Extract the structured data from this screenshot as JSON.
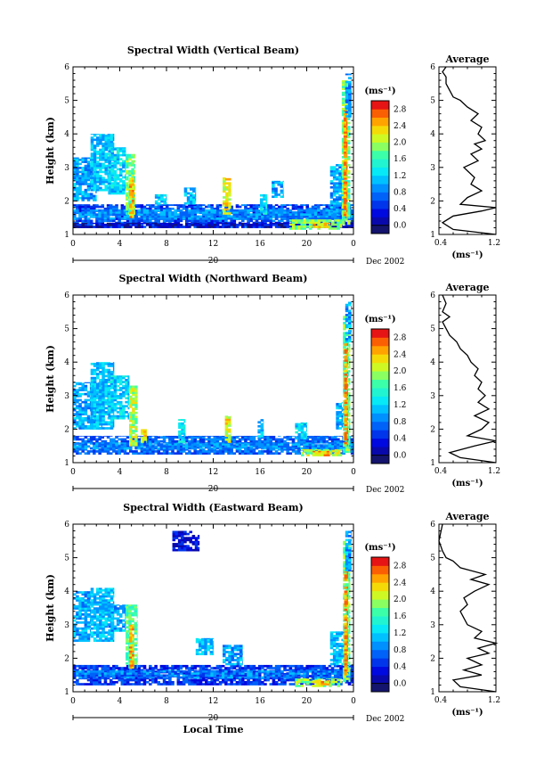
{
  "chart_data": [
    {
      "type": "heatmap",
      "title": "Spectral Width (Vertical Beam)",
      "xlabel": "",
      "ylabel": "Height (km)",
      "xlim": [
        0,
        24
      ],
      "ylim": [
        1,
        6
      ],
      "x_ticks": [
        "0",
        "4",
        "8",
        "12",
        "16",
        "20",
        "0"
      ],
      "y_ticks": [
        "1",
        "2",
        "3",
        "4",
        "5",
        "6"
      ],
      "date_label": "20",
      "date_suffix": "Dec 2002",
      "colorbar": {
        "unit": "(ms⁻¹)",
        "ticks": [
          "2.8",
          "2.4",
          "2.0",
          "1.6",
          "1.2",
          "0.8",
          "0.4",
          "0.0"
        ]
      },
      "features": [
        {
          "t0": 0.0,
          "t1": 24.0,
          "h0": 1.2,
          "h1": 1.9,
          "v": 0.8
        },
        {
          "t0": 0.0,
          "t1": 24.0,
          "h0": 1.45,
          "h1": 1.75,
          "v": 1.1
        },
        {
          "t0": 0.0,
          "t1": 24.0,
          "h0": 1.2,
          "h1": 1.35,
          "v": 0.4
        },
        {
          "t0": 0.0,
          "t1": 2.0,
          "h0": 2.0,
          "h1": 3.3,
          "v": 1.2
        },
        {
          "t0": 1.5,
          "t1": 3.5,
          "h0": 2.3,
          "h1": 4.0,
          "v": 1.3
        },
        {
          "t0": 3.0,
          "t1": 4.5,
          "h0": 2.2,
          "h1": 3.6,
          "v": 1.4
        },
        {
          "t0": 4.5,
          "t1": 5.3,
          "h0": 1.6,
          "h1": 3.4,
          "v": 2.0
        },
        {
          "t0": 4.8,
          "t1": 5.2,
          "h0": 1.5,
          "h1": 2.7,
          "v": 2.6
        },
        {
          "t0": 7.0,
          "t1": 8.0,
          "h0": 1.9,
          "h1": 2.2,
          "v": 1.4
        },
        {
          "t0": 9.5,
          "t1": 10.5,
          "h0": 1.9,
          "h1": 2.4,
          "v": 1.3
        },
        {
          "t0": 12.8,
          "t1": 13.5,
          "h0": 1.6,
          "h1": 2.7,
          "v": 2.4
        },
        {
          "t0": 16.0,
          "t1": 16.6,
          "h0": 1.6,
          "h1": 2.2,
          "v": 1.5
        },
        {
          "t0": 17.0,
          "t1": 18.0,
          "h0": 2.1,
          "h1": 2.6,
          "v": 1.2
        },
        {
          "t0": 18.5,
          "t1": 23.0,
          "h0": 1.15,
          "h1": 1.45,
          "v": 2.1
        },
        {
          "t0": 20.5,
          "t1": 22.0,
          "h0": 1.2,
          "h1": 1.35,
          "v": 2.6
        },
        {
          "t0": 22.0,
          "t1": 23.2,
          "h0": 1.6,
          "h1": 3.1,
          "v": 1.2
        },
        {
          "t0": 23.0,
          "t1": 23.7,
          "h0": 1.3,
          "h1": 5.6,
          "v": 2.0
        },
        {
          "t0": 23.15,
          "t1": 23.45,
          "h0": 1.5,
          "h1": 4.7,
          "v": 2.8
        },
        {
          "t0": 23.3,
          "t1": 23.8,
          "h0": 4.5,
          "h1": 5.8,
          "v": 1.1
        }
      ]
    },
    {
      "type": "line",
      "title": "Average",
      "xlabel": "(ms⁻¹)",
      "ylabel": "",
      "xlim": [
        0.4,
        1.2
      ],
      "ylim": [
        1,
        6
      ],
      "x_ticks": [
        "0.4",
        "1.2"
      ],
      "y_ticks": [
        "1",
        "2",
        "3",
        "4",
        "5",
        "6"
      ],
      "x": [
        1.2,
        0.6,
        0.45,
        0.6,
        1.0,
        1.2,
        0.7,
        0.8,
        1.0,
        0.85,
        0.9,
        0.8,
        0.75,
        0.95,
        0.85,
        1.0,
        0.9,
        1.05,
        0.95,
        1.0,
        0.85,
        0.95,
        0.8,
        0.7,
        0.6,
        0.55,
        0.5,
        0.5,
        0.45,
        0.5
      ],
      "y": [
        1.0,
        1.15,
        1.35,
        1.55,
        1.7,
        1.8,
        1.9,
        2.1,
        2.3,
        2.5,
        2.7,
        2.9,
        3.0,
        3.2,
        3.4,
        3.55,
        3.7,
        3.8,
        4.0,
        4.2,
        4.4,
        4.6,
        4.8,
        5.0,
        5.1,
        5.3,
        5.5,
        5.7,
        5.85,
        6.0
      ]
    },
    {
      "type": "heatmap",
      "title": "Spectral Width (Northward Beam)",
      "xlabel": "",
      "ylabel": "Height (km)",
      "xlim": [
        0,
        24
      ],
      "ylim": [
        1,
        6
      ],
      "x_ticks": [
        "0",
        "4",
        "8",
        "12",
        "16",
        "20",
        "0"
      ],
      "y_ticks": [
        "1",
        "2",
        "3",
        "4",
        "5",
        "6"
      ],
      "date_label": "20",
      "date_suffix": "Dec 2002",
      "colorbar": {
        "unit": "(ms⁻¹)",
        "ticks": [
          "2.8",
          "2.4",
          "2.0",
          "1.6",
          "1.2",
          "0.8",
          "0.4",
          "0.0"
        ]
      },
      "features": [
        {
          "t0": 0.0,
          "t1": 24.0,
          "h0": 1.25,
          "h1": 1.8,
          "v": 0.9
        },
        {
          "t0": 0.0,
          "t1": 24.0,
          "h0": 1.4,
          "h1": 1.6,
          "v": 1.1
        },
        {
          "t0": 0.0,
          "t1": 2.5,
          "h0": 2.0,
          "h1": 3.4,
          "v": 1.2
        },
        {
          "t0": 1.5,
          "t1": 3.5,
          "h0": 2.0,
          "h1": 4.0,
          "v": 1.3
        },
        {
          "t0": 3.0,
          "t1": 4.8,
          "h0": 2.3,
          "h1": 3.6,
          "v": 1.4
        },
        {
          "t0": 4.8,
          "t1": 5.5,
          "h0": 1.5,
          "h1": 3.3,
          "v": 2.2
        },
        {
          "t0": 5.8,
          "t1": 6.3,
          "h0": 1.6,
          "h1": 2.0,
          "v": 2.4
        },
        {
          "t0": 9.0,
          "t1": 9.6,
          "h0": 1.6,
          "h1": 2.3,
          "v": 1.5
        },
        {
          "t0": 13.0,
          "t1": 13.5,
          "h0": 1.6,
          "h1": 2.4,
          "v": 2.4
        },
        {
          "t0": 15.8,
          "t1": 16.3,
          "h0": 1.7,
          "h1": 2.3,
          "v": 1.3
        },
        {
          "t0": 19.0,
          "t1": 20.0,
          "h0": 1.7,
          "h1": 2.2,
          "v": 1.4
        },
        {
          "t0": 19.5,
          "t1": 23.0,
          "h0": 1.2,
          "h1": 1.4,
          "v": 2.2
        },
        {
          "t0": 20.5,
          "t1": 22.0,
          "h0": 1.2,
          "h1": 1.35,
          "v": 2.6
        },
        {
          "t0": 22.5,
          "t1": 23.2,
          "h0": 2.0,
          "h1": 2.8,
          "v": 1.2
        },
        {
          "t0": 23.1,
          "t1": 23.7,
          "h0": 1.3,
          "h1": 5.4,
          "v": 2.0
        },
        {
          "t0": 23.2,
          "t1": 23.5,
          "h0": 1.5,
          "h1": 4.6,
          "v": 2.8
        },
        {
          "t0": 23.3,
          "t1": 23.8,
          "h0": 4.6,
          "h1": 5.8,
          "v": 1.2
        }
      ]
    },
    {
      "type": "line",
      "title": "Average",
      "xlabel": "(ms⁻¹)",
      "ylabel": "",
      "xlim": [
        0.4,
        1.2
      ],
      "ylim": [
        1,
        6
      ],
      "x_ticks": [
        "0.4",
        "1.2"
      ],
      "y_ticks": [
        "1",
        "2",
        "3",
        "4",
        "5",
        "6"
      ],
      "x": [
        1.2,
        0.7,
        0.55,
        0.9,
        1.2,
        0.8,
        1.0,
        1.1,
        0.9,
        1.1,
        0.95,
        1.05,
        0.95,
        1.0,
        0.9,
        0.95,
        0.85,
        0.8,
        0.7,
        0.65,
        0.55,
        0.5,
        0.45,
        0.55,
        0.45,
        0.5,
        0.45
      ],
      "y": [
        1.0,
        1.15,
        1.3,
        1.5,
        1.65,
        1.8,
        2.0,
        2.2,
        2.4,
        2.6,
        2.8,
        3.0,
        3.2,
        3.4,
        3.6,
        3.8,
        4.0,
        4.2,
        4.4,
        4.6,
        4.8,
        5.0,
        5.2,
        5.35,
        5.5,
        5.75,
        6.0
      ]
    },
    {
      "type": "heatmap",
      "title": "Spectral Width (Eastward Beam)",
      "xlabel": "Local Time",
      "ylabel": "Height (km)",
      "xlim": [
        0,
        24
      ],
      "ylim": [
        1,
        6
      ],
      "x_ticks": [
        "0",
        "4",
        "8",
        "12",
        "16",
        "20",
        "0"
      ],
      "y_ticks": [
        "1",
        "2",
        "3",
        "4",
        "5",
        "6"
      ],
      "date_label": "20",
      "date_suffix": "Dec 2002",
      "colorbar": {
        "unit": "(ms⁻¹)",
        "ticks": [
          "2.8",
          "2.4",
          "2.0",
          "1.6",
          "1.2",
          "0.8",
          "0.4",
          "0.0"
        ]
      },
      "features": [
        {
          "t0": 0.0,
          "t1": 24.0,
          "h0": 1.2,
          "h1": 1.8,
          "v": 0.7
        },
        {
          "t0": 0.0,
          "t1": 24.0,
          "h0": 1.4,
          "h1": 1.65,
          "v": 1.0
        },
        {
          "t0": 0.0,
          "t1": 1.5,
          "h0": 2.5,
          "h1": 4.0,
          "v": 1.2
        },
        {
          "t0": 1.5,
          "t1": 3.5,
          "h0": 2.5,
          "h1": 4.1,
          "v": 1.3
        },
        {
          "t0": 3.0,
          "t1": 4.5,
          "h0": 2.8,
          "h1": 3.6,
          "v": 1.2
        },
        {
          "t0": 4.5,
          "t1": 5.5,
          "h0": 1.7,
          "h1": 3.6,
          "v": 1.9
        },
        {
          "t0": 4.8,
          "t1": 5.2,
          "h0": 1.7,
          "h1": 3.0,
          "v": 2.6
        },
        {
          "t0": 8.5,
          "t1": 10.8,
          "h0": 5.2,
          "h1": 5.8,
          "v": 0.5
        },
        {
          "t0": 10.5,
          "t1": 12.0,
          "h0": 2.1,
          "h1": 2.6,
          "v": 1.3
        },
        {
          "t0": 12.8,
          "t1": 14.5,
          "h0": 1.8,
          "h1": 2.4,
          "v": 1.2
        },
        {
          "t0": 19.0,
          "t1": 23.0,
          "h0": 1.15,
          "h1": 1.4,
          "v": 2.1
        },
        {
          "t0": 20.5,
          "t1": 22.0,
          "h0": 1.2,
          "h1": 1.35,
          "v": 2.6
        },
        {
          "t0": 22.0,
          "t1": 23.2,
          "h0": 1.8,
          "h1": 2.8,
          "v": 1.3
        },
        {
          "t0": 23.1,
          "t1": 23.7,
          "h0": 1.3,
          "h1": 5.5,
          "v": 2.0
        },
        {
          "t0": 23.2,
          "t1": 23.5,
          "h0": 1.5,
          "h1": 4.6,
          "v": 2.8
        },
        {
          "t0": 23.3,
          "t1": 23.8,
          "h0": 4.6,
          "h1": 5.8,
          "v": 1.2
        }
      ]
    },
    {
      "type": "line",
      "title": "Average",
      "xlabel": "(ms⁻¹)",
      "ylabel": "",
      "xlim": [
        0.4,
        1.2
      ],
      "ylim": [
        1,
        6
      ],
      "x_ticks": [
        "0.4",
        "1.2"
      ],
      "y_ticks": [
        "1",
        "2",
        "3",
        "4",
        "5",
        "6"
      ],
      "x": [
        1.2,
        0.7,
        0.6,
        1.0,
        0.75,
        1.0,
        0.8,
        1.1,
        0.95,
        1.2,
        0.9,
        1.0,
        0.8,
        0.75,
        0.7,
        0.8,
        0.75,
        0.9,
        1.1,
        0.85,
        1.05,
        0.7,
        0.6,
        0.5,
        0.45,
        0.4,
        0.45
      ],
      "y": [
        1.0,
        1.15,
        1.35,
        1.5,
        1.65,
        1.8,
        2.0,
        2.15,
        2.3,
        2.45,
        2.6,
        2.8,
        3.0,
        3.2,
        3.4,
        3.6,
        3.8,
        4.0,
        4.2,
        4.35,
        4.5,
        4.7,
        4.9,
        5.0,
        5.2,
        5.5,
        6.0
      ]
    }
  ]
}
